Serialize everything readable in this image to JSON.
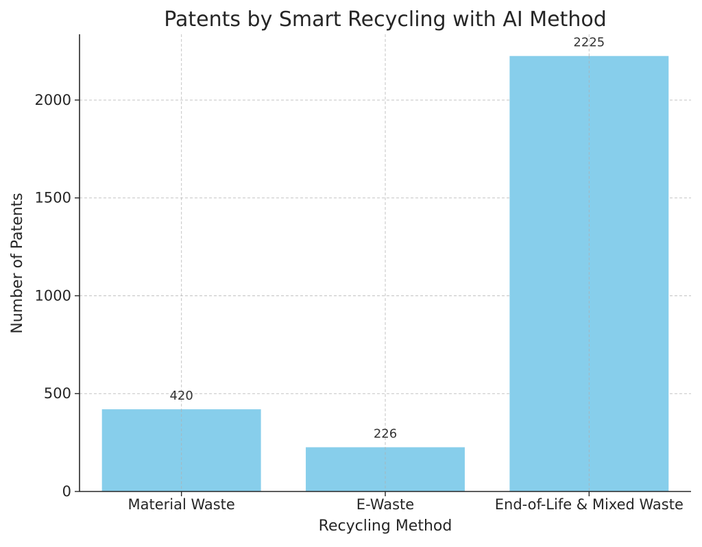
{
  "chart_data": {
    "type": "bar",
    "title": "Patents by Smart Recycling with AI Method",
    "xlabel": "Recycling Method",
    "ylabel": "Number of Patents",
    "categories": [
      "Material Waste",
      "E-Waste",
      "End-of-Life & Mixed Waste"
    ],
    "values": [
      420,
      226,
      2225
    ],
    "data_labels": [
      "420",
      "226",
      "2225"
    ],
    "yticks": [
      0,
      500,
      1000,
      1500,
      2000
    ],
    "ylim": [
      0,
      2336
    ],
    "grid": true,
    "bar_color": "#87CEEB"
  }
}
